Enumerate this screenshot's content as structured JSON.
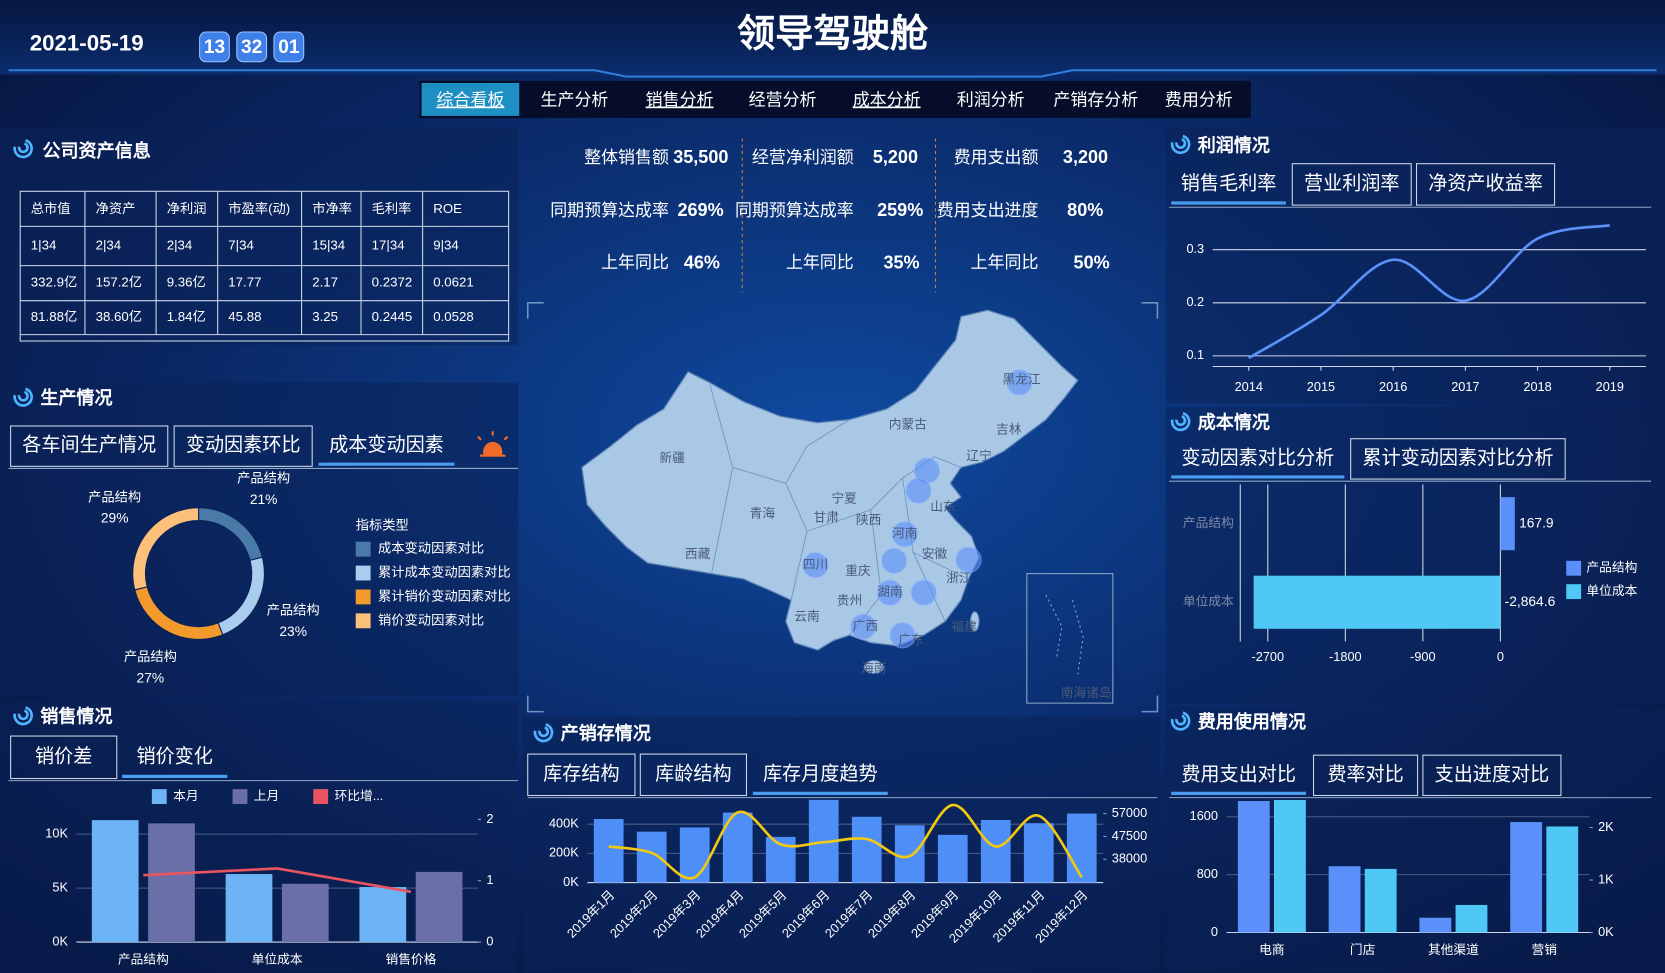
{
  "header": {
    "date": "2021-05-19",
    "time": [
      "13",
      "32",
      "01"
    ],
    "title": "领导驾驶舱"
  },
  "nav": [
    "综合看板",
    "生产分析",
    "销售分析",
    "经营分析",
    "成本分析",
    "利润分析",
    "产销存分析",
    "费用分析"
  ],
  "kpis": [
    {
      "label": "整体销售额",
      "value": "35,500"
    },
    {
      "label": "经营净利润额",
      "value": "5,200"
    },
    {
      "label": "费用支出额",
      "value": "3,200"
    },
    {
      "label": "同期预算达成率",
      "value": "269%"
    },
    {
      "label": "同期预算达成率",
      "value": "259%"
    },
    {
      "label": "费用支出进度",
      "value": "80%"
    },
    {
      "label": "上年同比",
      "value": "46%"
    },
    {
      "label": "上年同比",
      "value": "35%"
    },
    {
      "label": "上年同比",
      "value": "50%"
    }
  ],
  "asset": {
    "title": "公司资产信息",
    "table": {
      "header": [
        "总市值",
        "净资产",
        "净利润",
        "市盈率(动)",
        "市净率",
        "毛利率",
        "ROE"
      ],
      "rows": [
        [
          "1|34",
          "2|34",
          "2|34",
          "7|34",
          "15|34",
          "17|34",
          "9|34"
        ],
        [
          "332.9亿",
          "157.2亿",
          "9.36亿",
          "17.77",
          "2.17",
          "0.2372",
          "0.0621"
        ],
        [
          "81.88亿",
          "38.60亿",
          "1.84亿",
          "45.88",
          "3.25",
          "0.2445",
          "0.0528"
        ]
      ]
    }
  },
  "panels": {
    "production": {
      "title": "生产情况",
      "tabs": [
        "各车间生产情况",
        "变动因素环比",
        "成本变动因素"
      ]
    },
    "sales": {
      "title": "销售情况",
      "tabs": [
        "销价差",
        "销价变化"
      ]
    },
    "inventory": {
      "title": "产销存情况",
      "tabs": [
        "库存结构",
        "库龄结构",
        "库存月度趋势"
      ]
    },
    "profit": {
      "title": "利润情况",
      "tabs": [
        "销售毛利率",
        "营业利润率",
        "净资产收益率"
      ]
    },
    "cost": {
      "title": "成本情况",
      "tabs": [
        "变动因素对比分析",
        "累计变动因素对比分析"
      ]
    },
    "expense": {
      "title": "费用使用情况",
      "tabs": [
        "费用支出对比",
        "费率对比",
        "支出进度对比"
      ]
    }
  },
  "map": {
    "labels": [
      "新疆",
      "西藏",
      "青海",
      "甘肃",
      "宁夏",
      "陕西",
      "内蒙古",
      "黑龙江",
      "吉林",
      "辽宁",
      "山东",
      "河南",
      "安徽",
      "浙江",
      "湖南",
      "重庆",
      "四川",
      "贵州",
      "云南",
      "广西",
      "广东",
      "福建",
      "海南",
      "南海诸岛"
    ]
  },
  "chart_data": [
    {
      "type": "pie",
      "categories": [
        "产品结构",
        "产品结构",
        "产品结构",
        "产品结构"
      ],
      "values": [
        21,
        23,
        27,
        29
      ],
      "value_labels": [
        "21%",
        "23%",
        "27%",
        "29%"
      ],
      "colors": [
        "#4a7aa8",
        "#a8cdee",
        "#f39a2c",
        "#fcc07a"
      ],
      "legend_title": "指标类型",
      "legend": [
        "成本变动因素对比",
        "累计成本变动因素对比",
        "累计销价变动因素对比",
        "销价变动因素对比"
      ]
    },
    {
      "type": "bar",
      "categories": [
        "产品结构",
        "单位成本",
        "销售价格"
      ],
      "series": [
        {
          "name": "本月",
          "color": "#6cb4f5",
          "values": [
            11300,
            6300,
            5100
          ]
        },
        {
          "name": "上月",
          "color": "#6a6fa8",
          "values": [
            11000,
            5400,
            6500
          ]
        },
        {
          "name": "环比增...",
          "color": "#e8545f",
          "type": "line",
          "axis": "y2",
          "values": [
            1.09,
            1.2,
            0.82
          ]
        }
      ],
      "ylim": [
        0,
        12500
      ],
      "yticks": [
        {
          "value": 0,
          "label": "0K"
        },
        {
          "value": 5000,
          "label": "5K"
        },
        {
          "value": 10000,
          "label": "10K"
        }
      ],
      "y2lim": [
        0,
        2.2
      ],
      "y2ticks": [
        0,
        1,
        2
      ],
      "grid": true
    },
    {
      "type": "bar",
      "categories": [
        "2019年1月",
        "2019年2月",
        "2019年3月",
        "2019年4月",
        "2019年5月",
        "2019年6月",
        "2019年7月",
        "2019年8月",
        "2019年9月",
        "2019年10月",
        "2019年11月",
        "2019年12月"
      ],
      "series": [
        {
          "color": "#4d8ef7",
          "values": [
            436000,
            349000,
            378000,
            480000,
            313000,
            567000,
            451000,
            393000,
            327000,
            429000,
            407000,
            473000
          ]
        },
        {
          "color": "#f2c811",
          "type": "line",
          "axis": "y2",
          "smooth": true,
          "values": [
            43300,
            40650,
            30500,
            57500,
            44200,
            45100,
            46400,
            39300,
            60600,
            43300,
            56100,
            30500
          ]
        }
      ],
      "ylim": [
        0,
        575000
      ],
      "yticks": [
        {
          "value": 0,
          "label": "0K"
        },
        {
          "value": 200000,
          "label": "200K"
        },
        {
          "value": 400000,
          "label": "400K"
        }
      ],
      "y2lim": [
        28300,
        63200
      ],
      "y2ticks": [
        38000,
        47500,
        57000
      ],
      "grid": true
    },
    {
      "type": "line",
      "x": [
        2014,
        2015,
        2016,
        2017,
        2018,
        2019
      ],
      "xlim": [
        2013.5,
        2019.5
      ],
      "xticks": [
        2014,
        2015,
        2016,
        2017,
        2018,
        2019
      ],
      "series": [
        {
          "color": "#5b8ff9",
          "smooth": true,
          "values": [
            0.096,
            0.177,
            0.281,
            0.204,
            0.321,
            0.346
          ]
        }
      ],
      "ylim": [
        0.08,
        0.36
      ],
      "yticks": [
        0.1,
        0.2,
        0.3
      ],
      "grid": true
    },
    {
      "type": "barh",
      "categories": [
        "产品结构",
        "单位成本"
      ],
      "series": [
        {
          "name": "产品结构",
          "color": "#5b8ff9",
          "values": [
            167.9,
            null
          ],
          "value_labels": [
            "167.9",
            null
          ]
        },
        {
          "name": "单位成本",
          "color": "#4fc8f5",
          "values": [
            null,
            -2864.6
          ],
          "value_labels": [
            null,
            "-2,864.6"
          ]
        }
      ],
      "xlim": [
        -3020,
        210
      ],
      "xticks": [
        -2700,
        -1800,
        -900,
        0
      ],
      "grid": true
    },
    {
      "type": "bar",
      "categories": [
        "电商",
        "门店",
        "其他渠道",
        "营销"
      ],
      "series": [
        {
          "color": "#5b8ff9",
          "values": [
            1818,
            916,
            204,
            1527
          ]
        },
        {
          "color": "#4fc8f5",
          "axis": "y2",
          "values": [
            2525,
            1212,
            525,
            2020
          ]
        }
      ],
      "ylim": [
        0,
        1850
      ],
      "yticks": [
        0,
        800,
        1600
      ],
      "y2lim": [
        0,
        2550
      ],
      "y2ticks": [
        {
          "value": 0,
          "label": "0K"
        },
        {
          "value": 1000,
          "label": "1K"
        },
        {
          "value": 2000,
          "label": "2K"
        }
      ],
      "grid": true
    }
  ]
}
